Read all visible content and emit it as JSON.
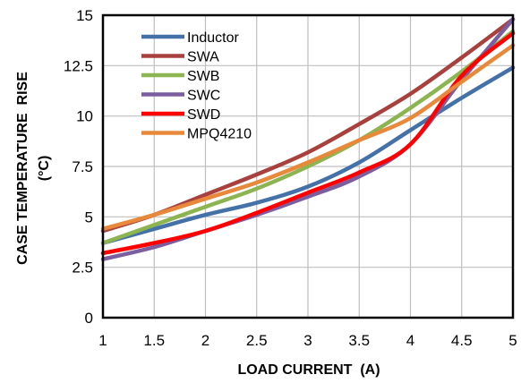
{
  "chart_data": {
    "type": "line",
    "xlabel": "LOAD CURRENT  (A)",
    "ylabel_line1": "CASE TEMPERATURE  RISE",
    "ylabel_line2": "(°C)",
    "xlim": [
      1,
      5
    ],
    "ylim": [
      0,
      15
    ],
    "x_ticks": [
      "1",
      "1.5",
      "2",
      "2.5",
      "3",
      "3.5",
      "4",
      "4.5",
      "5"
    ],
    "y_ticks": [
      "0",
      "2.5",
      "5",
      "7.5",
      "10",
      "12.5",
      "15"
    ],
    "grid": true,
    "legend_position": "top-left",
    "x": [
      1,
      1.5,
      2,
      2.5,
      3,
      3.5,
      4,
      4.5,
      5
    ],
    "series": [
      {
        "name": "Inductor",
        "color": "#4472A8",
        "values": [
          3.7,
          4.4,
          5.1,
          5.7,
          6.5,
          7.7,
          9.3,
          10.9,
          12.4
        ]
      },
      {
        "name": "SWA",
        "color": "#A8413E",
        "values": [
          4.3,
          5.1,
          6.1,
          7.1,
          8.2,
          9.6,
          11.1,
          12.9,
          14.8
        ]
      },
      {
        "name": "SWB",
        "color": "#8CB450",
        "values": [
          3.7,
          4.6,
          5.5,
          6.4,
          7.5,
          8.8,
          10.4,
          12.2,
          14.2
        ]
      },
      {
        "name": "SWC",
        "color": "#7B5EA0",
        "values": [
          2.9,
          3.5,
          4.3,
          5.1,
          6.0,
          7.0,
          8.6,
          11.8,
          14.8
        ]
      },
      {
        "name": "SWD",
        "color": "#FF0000",
        "values": [
          3.2,
          3.7,
          4.3,
          5.2,
          6.2,
          7.2,
          8.6,
          12.0,
          14.1
        ]
      },
      {
        "name": "MPQ4210",
        "color": "#E8883A",
        "values": [
          4.4,
          5.1,
          5.9,
          6.7,
          7.7,
          8.8,
          9.9,
          11.7,
          13.5
        ]
      }
    ]
  }
}
